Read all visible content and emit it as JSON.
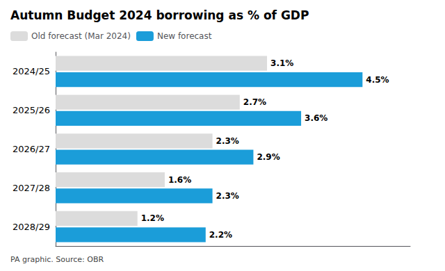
{
  "chart_data": {
    "type": "bar",
    "orientation": "horizontal",
    "title": "Autumn Budget 2024 borrowing as % of GDP",
    "categories": [
      "2024/25",
      "2025/26",
      "2026/27",
      "2027/28",
      "2028/29"
    ],
    "series": [
      {
        "name": "Old forecast (Mar 2024)",
        "color": "#dcdcdc",
        "values": [
          3.1,
          2.7,
          2.3,
          1.6,
          1.2
        ],
        "value_labels": [
          "3.1%",
          "2.7%",
          "2.3%",
          "1.6%",
          "1.2%"
        ]
      },
      {
        "name": "New forecast",
        "color": "#1b9dd9",
        "values": [
          4.5,
          3.6,
          2.9,
          2.3,
          2.2
        ],
        "value_labels": [
          "4.5%",
          "3.6%",
          "2.9%",
          "2.3%",
          "2.2%"
        ]
      }
    ],
    "xlim": [
      0,
      5.2
    ],
    "grid": false,
    "legend": "upper left",
    "data_labels": true,
    "tick_labels": "y",
    "annotations": [
      "PA graphic. Source: OBR"
    ]
  }
}
